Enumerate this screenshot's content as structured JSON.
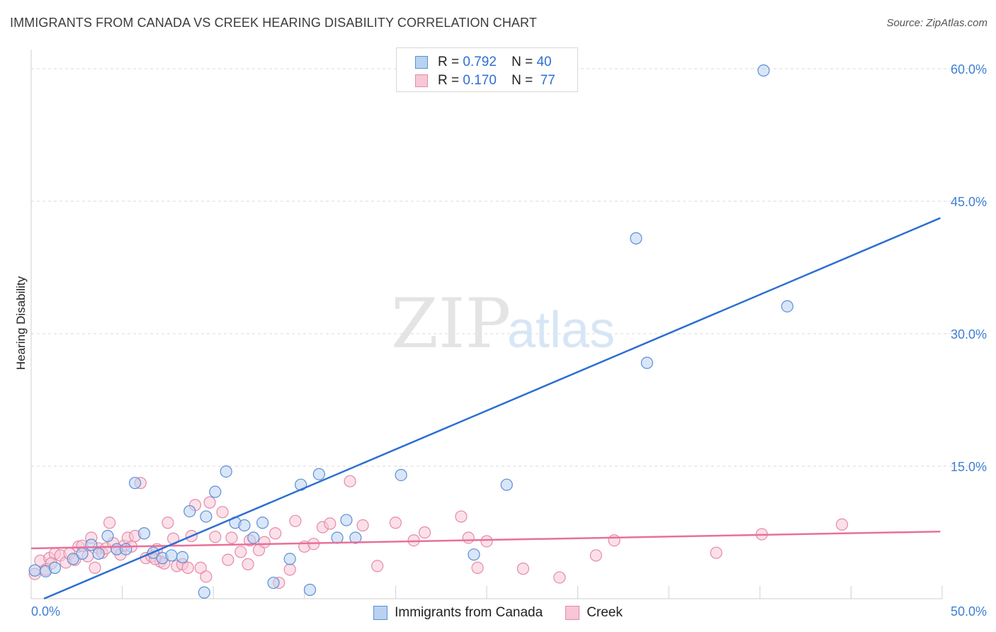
{
  "title": "IMMIGRANTS FROM CANADA VS CREEK HEARING DISABILITY CORRELATION CHART",
  "source": "Source: ZipAtlas.com",
  "watermark": {
    "zip": "ZIP",
    "atlas": "atlas"
  },
  "legend_top": [
    {
      "r_label": "R = ",
      "r_value": "0.792",
      "n_label": "N = ",
      "n_value": "40"
    },
    {
      "r_label": "R = ",
      "r_value": "0.170",
      "n_label": "N = ",
      "n_value": "77"
    }
  ],
  "colors": {
    "blue_fill": "#b9d2f2",
    "blue_stroke": "#5b8fd6",
    "blue_line": "#2c6fd1",
    "pink_fill": "#f8c6d6",
    "pink_stroke": "#e58aa8",
    "pink_line": "#e8709a",
    "grid": "#d9d9d9",
    "tick_text": "#3f7fd4"
  },
  "chart_data": {
    "type": "scatter",
    "title": "IMMIGRANTS FROM CANADA VS CREEK HEARING DISABILITY CORRELATION CHART",
    "xlabel": "",
    "ylabel": "Hearing Disability",
    "xlim": [
      0,
      50
    ],
    "ylim": [
      0,
      62
    ],
    "x_tick_labels": [
      "0.0%",
      "50.0%"
    ],
    "y_ticks": [
      15,
      30,
      45,
      60
    ],
    "y_tick_labels": [
      "15.0%",
      "30.0%",
      "45.0%",
      "60.0%"
    ],
    "grid": true,
    "legend_position": "bottom",
    "series": [
      {
        "name": "Immigrants from Canada",
        "color": "#5b8fd6",
        "r": 0.792,
        "n": 40,
        "trendline": [
          [
            0.7,
            0
          ],
          [
            49.9,
            43.1
          ]
        ],
        "points": [
          [
            0.2,
            3.2
          ],
          [
            0.8,
            3.1
          ],
          [
            1.3,
            3.5
          ],
          [
            2.3,
            4.5
          ],
          [
            2.8,
            5.1
          ],
          [
            3.3,
            6.1
          ],
          [
            3.7,
            5.1
          ],
          [
            4.2,
            7.1
          ],
          [
            4.7,
            5.6
          ],
          [
            5.2,
            5.6
          ],
          [
            5.7,
            13.1
          ],
          [
            6.2,
            7.4
          ],
          [
            6.7,
            5.2
          ],
          [
            7.2,
            4.6
          ],
          [
            7.7,
            4.9
          ],
          [
            8.3,
            4.7
          ],
          [
            8.7,
            9.9
          ],
          [
            9.5,
            0.7
          ],
          [
            9.6,
            9.3
          ],
          [
            10.1,
            12.1
          ],
          [
            10.7,
            14.4
          ],
          [
            11.2,
            8.6
          ],
          [
            11.7,
            8.3
          ],
          [
            12.2,
            6.9
          ],
          [
            12.7,
            8.6
          ],
          [
            13.3,
            1.8
          ],
          [
            14.2,
            4.5
          ],
          [
            14.8,
            12.9
          ],
          [
            15.3,
            1.0
          ],
          [
            15.8,
            14.1
          ],
          [
            16.8,
            6.9
          ],
          [
            17.3,
            8.9
          ],
          [
            17.8,
            6.9
          ],
          [
            20.3,
            14.0
          ],
          [
            24.3,
            5.0
          ],
          [
            26.1,
            12.9
          ],
          [
            33.2,
            40.8
          ],
          [
            33.8,
            26.7
          ],
          [
            40.2,
            59.8
          ],
          [
            41.5,
            33.1
          ]
        ]
      },
      {
        "name": "Creek",
        "color": "#e58aa8",
        "r": 0.17,
        "n": 77,
        "trendline": [
          [
            0.0,
            5.7
          ],
          [
            49.9,
            7.6
          ]
        ],
        "points": [
          [
            0.2,
            2.8
          ],
          [
            0.5,
            4.3
          ],
          [
            0.8,
            3.3
          ],
          [
            1.0,
            4.6
          ],
          [
            1.3,
            5.1
          ],
          [
            1.6,
            4.9
          ],
          [
            1.9,
            4.1
          ],
          [
            2.1,
            5.1
          ],
          [
            2.4,
            4.4
          ],
          [
            2.6,
            5.9
          ],
          [
            2.8,
            6.0
          ],
          [
            3.1,
            4.8
          ],
          [
            3.3,
            6.9
          ],
          [
            3.5,
            3.5
          ],
          [
            3.7,
            5.7
          ],
          [
            3.9,
            5.2
          ],
          [
            4.1,
            5.7
          ],
          [
            4.3,
            8.6
          ],
          [
            4.5,
            6.3
          ],
          [
            4.7,
            5.6
          ],
          [
            4.9,
            5.0
          ],
          [
            5.1,
            6.0
          ],
          [
            5.3,
            6.9
          ],
          [
            5.5,
            5.9
          ],
          [
            5.7,
            7.1
          ],
          [
            6.0,
            13.1
          ],
          [
            6.3,
            4.6
          ],
          [
            6.6,
            4.8
          ],
          [
            6.9,
            5.6
          ],
          [
            7.1,
            4.2
          ],
          [
            7.3,
            4.0
          ],
          [
            7.5,
            8.6
          ],
          [
            7.8,
            6.8
          ],
          [
            8.0,
            3.7
          ],
          [
            8.3,
            3.9
          ],
          [
            8.6,
            3.5
          ],
          [
            8.8,
            7.1
          ],
          [
            9.0,
            10.6
          ],
          [
            9.3,
            3.5
          ],
          [
            9.6,
            2.5
          ],
          [
            9.8,
            10.9
          ],
          [
            10.1,
            7.0
          ],
          [
            10.5,
            9.8
          ],
          [
            10.8,
            4.4
          ],
          [
            11.0,
            6.9
          ],
          [
            11.5,
            5.3
          ],
          [
            12.0,
            6.6
          ],
          [
            12.5,
            5.5
          ],
          [
            12.8,
            6.4
          ],
          [
            13.4,
            7.4
          ],
          [
            13.6,
            1.8
          ],
          [
            14.2,
            3.3
          ],
          [
            14.5,
            8.8
          ],
          [
            15.0,
            5.9
          ],
          [
            15.5,
            6.2
          ],
          [
            16.0,
            8.1
          ],
          [
            16.4,
            8.5
          ],
          [
            17.5,
            13.3
          ],
          [
            18.2,
            8.3
          ],
          [
            19.0,
            3.7
          ],
          [
            20.0,
            8.6
          ],
          [
            21.0,
            6.6
          ],
          [
            21.6,
            7.5
          ],
          [
            23.6,
            9.3
          ],
          [
            24.0,
            6.9
          ],
          [
            24.5,
            3.5
          ],
          [
            25.0,
            6.5
          ],
          [
            27.0,
            3.4
          ],
          [
            29.0,
            2.4
          ],
          [
            31.0,
            4.9
          ],
          [
            32.0,
            6.6
          ],
          [
            37.6,
            5.2
          ],
          [
            40.1,
            7.3
          ],
          [
            44.5,
            8.4
          ],
          [
            1.1,
            4.0
          ],
          [
            6.8,
            4.5
          ],
          [
            11.9,
            3.9
          ]
        ]
      }
    ]
  }
}
